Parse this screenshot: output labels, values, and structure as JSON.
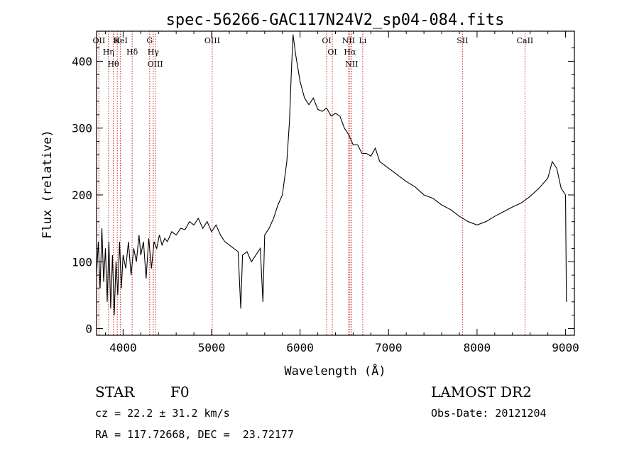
{
  "chart_data": {
    "type": "line",
    "title": "spec-56266-GAC117N24V2_sp04-084.fits",
    "xlabel": "Wavelength (Å)",
    "ylabel": "Flux (relative)",
    "xlim": [
      3700,
      9100
    ],
    "ylim": [
      -10,
      445
    ],
    "x_ticks": [
      4000,
      5000,
      6000,
      7000,
      8000,
      9000
    ],
    "y_ticks": [
      0,
      100,
      200,
      300,
      400
    ],
    "grid": false,
    "series": [
      {
        "points": [
          [
            3700,
            80
          ],
          [
            3720,
            130
          ],
          [
            3740,
            60
          ],
          [
            3760,
            150
          ],
          [
            3780,
            70
          ],
          [
            3800,
            120
          ],
          [
            3820,
            40
          ],
          [
            3840,
            130
          ],
          [
            3860,
            30
          ],
          [
            3880,
            110
          ],
          [
            3900,
            20
          ],
          [
            3920,
            100
          ],
          [
            3940,
            50
          ],
          [
            3960,
            130
          ],
          [
            3980,
            60
          ],
          [
            4000,
            110
          ],
          [
            4030,
            90
          ],
          [
            4060,
            130
          ],
          [
            4090,
            80
          ],
          [
            4120,
            120
          ],
          [
            4150,
            100
          ],
          [
            4180,
            140
          ],
          [
            4200,
            110
          ],
          [
            4230,
            130
          ],
          [
            4260,
            75
          ],
          [
            4290,
            135
          ],
          [
            4320,
            90
          ],
          [
            4350,
            130
          ],
          [
            4380,
            120
          ],
          [
            4410,
            140
          ],
          [
            4440,
            125
          ],
          [
            4470,
            135
          ],
          [
            4500,
            130
          ],
          [
            4550,
            145
          ],
          [
            4600,
            140
          ],
          [
            4650,
            150
          ],
          [
            4700,
            148
          ],
          [
            4750,
            160
          ],
          [
            4800,
            155
          ],
          [
            4850,
            165
          ],
          [
            4900,
            150
          ],
          [
            4950,
            160
          ],
          [
            5000,
            145
          ],
          [
            5050,
            155
          ],
          [
            5100,
            140
          ],
          [
            5150,
            130
          ],
          [
            5200,
            125
          ],
          [
            5250,
            120
          ],
          [
            5300,
            115
          ],
          [
            5330,
            30
          ],
          [
            5350,
            110
          ],
          [
            5400,
            115
          ],
          [
            5450,
            100
          ],
          [
            5500,
            110
          ],
          [
            5550,
            120
          ],
          [
            5580,
            40
          ],
          [
            5600,
            140
          ],
          [
            5650,
            150
          ],
          [
            5700,
            165
          ],
          [
            5750,
            185
          ],
          [
            5800,
            200
          ],
          [
            5850,
            250
          ],
          [
            5880,
            310
          ],
          [
            5900,
            380
          ],
          [
            5920,
            440
          ],
          [
            5950,
            410
          ],
          [
            6000,
            370
          ],
          [
            6050,
            345
          ],
          [
            6100,
            335
          ],
          [
            6150,
            345
          ],
          [
            6200,
            328
          ],
          [
            6250,
            325
          ],
          [
            6300,
            330
          ],
          [
            6350,
            318
          ],
          [
            6400,
            322
          ],
          [
            6450,
            318
          ],
          [
            6500,
            300
          ],
          [
            6550,
            290
          ],
          [
            6600,
            275
          ],
          [
            6650,
            275
          ],
          [
            6700,
            262
          ],
          [
            6750,
            262
          ],
          [
            6800,
            258
          ],
          [
            6850,
            270
          ],
          [
            6900,
            250
          ],
          [
            6950,
            245
          ],
          [
            7000,
            240
          ],
          [
            7100,
            230
          ],
          [
            7200,
            220
          ],
          [
            7300,
            212
          ],
          [
            7400,
            200
          ],
          [
            7500,
            195
          ],
          [
            7600,
            185
          ],
          [
            7700,
            178
          ],
          [
            7800,
            168
          ],
          [
            7900,
            160
          ],
          [
            8000,
            155
          ],
          [
            8100,
            160
          ],
          [
            8200,
            168
          ],
          [
            8300,
            175
          ],
          [
            8400,
            182
          ],
          [
            8500,
            188
          ],
          [
            8600,
            198
          ],
          [
            8700,
            210
          ],
          [
            8800,
            225
          ],
          [
            8850,
            250
          ],
          [
            8900,
            240
          ],
          [
            8950,
            210
          ],
          [
            9000,
            200
          ],
          [
            9010,
            40
          ]
        ]
      }
    ],
    "line_markers": [
      {
        "wavelength": 3727,
        "label": "OII"
      },
      {
        "wavelength": 3835,
        "label": "Hη"
      },
      {
        "wavelength": 3889,
        "label": "Hθ"
      },
      {
        "wavelength": 3934,
        "label": "K"
      },
      {
        "wavelength": 3970,
        "label": "HeI"
      },
      {
        "wavelength": 4102,
        "label": "Hδ"
      },
      {
        "wavelength": 4300,
        "label": "G"
      },
      {
        "wavelength": 4341,
        "label": "Hγ"
      },
      {
        "wavelength": 4363,
        "label": "OIII"
      },
      {
        "wavelength": 5007,
        "label": "OIII"
      },
      {
        "wavelength": 6300,
        "label": "OI"
      },
      {
        "wavelength": 6364,
        "label": "OI"
      },
      {
        "wavelength": 6548,
        "label": "NII"
      },
      {
        "wavelength": 6563,
        "label": "Hα"
      },
      {
        "wavelength": 6583,
        "label": "NII"
      },
      {
        "wavelength": 6708,
        "label": "Li"
      },
      {
        "wavelength": 7835,
        "label": "SII"
      },
      {
        "wavelength": 8542,
        "label": "CaII"
      }
    ]
  },
  "info": {
    "class": "STAR",
    "subclass": "F0",
    "survey": "LAMOST DR2",
    "cz": "cz = 22.2 ± 31.2 km/s",
    "obs_date": "Obs-Date: 20121204",
    "coords": "RA = 117.72668, DEC =  23.72177"
  },
  "colors": {
    "spectrum": "#000000",
    "line_marker": "#cc2222",
    "axes": "#000000"
  }
}
